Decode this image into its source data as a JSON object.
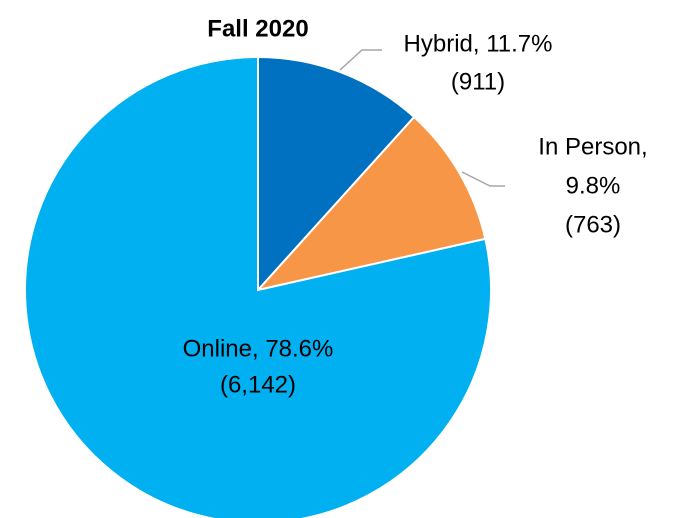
{
  "chart_data": {
    "type": "pie",
    "title": "Fall 2020",
    "values": [
      11.7,
      9.8,
      78.6
    ],
    "counts": [
      911,
      763,
      6142
    ],
    "value_labels": [
      [
        "Hybrid, 11.7%",
        "(911)"
      ],
      [
        "In Person,",
        "9.8%",
        "(763)"
      ],
      [
        "Online, 78.6%",
        "(6,142)"
      ]
    ],
    "colors": [
      "#0070c0",
      "#f79646",
      "#00b0f0"
    ]
  }
}
